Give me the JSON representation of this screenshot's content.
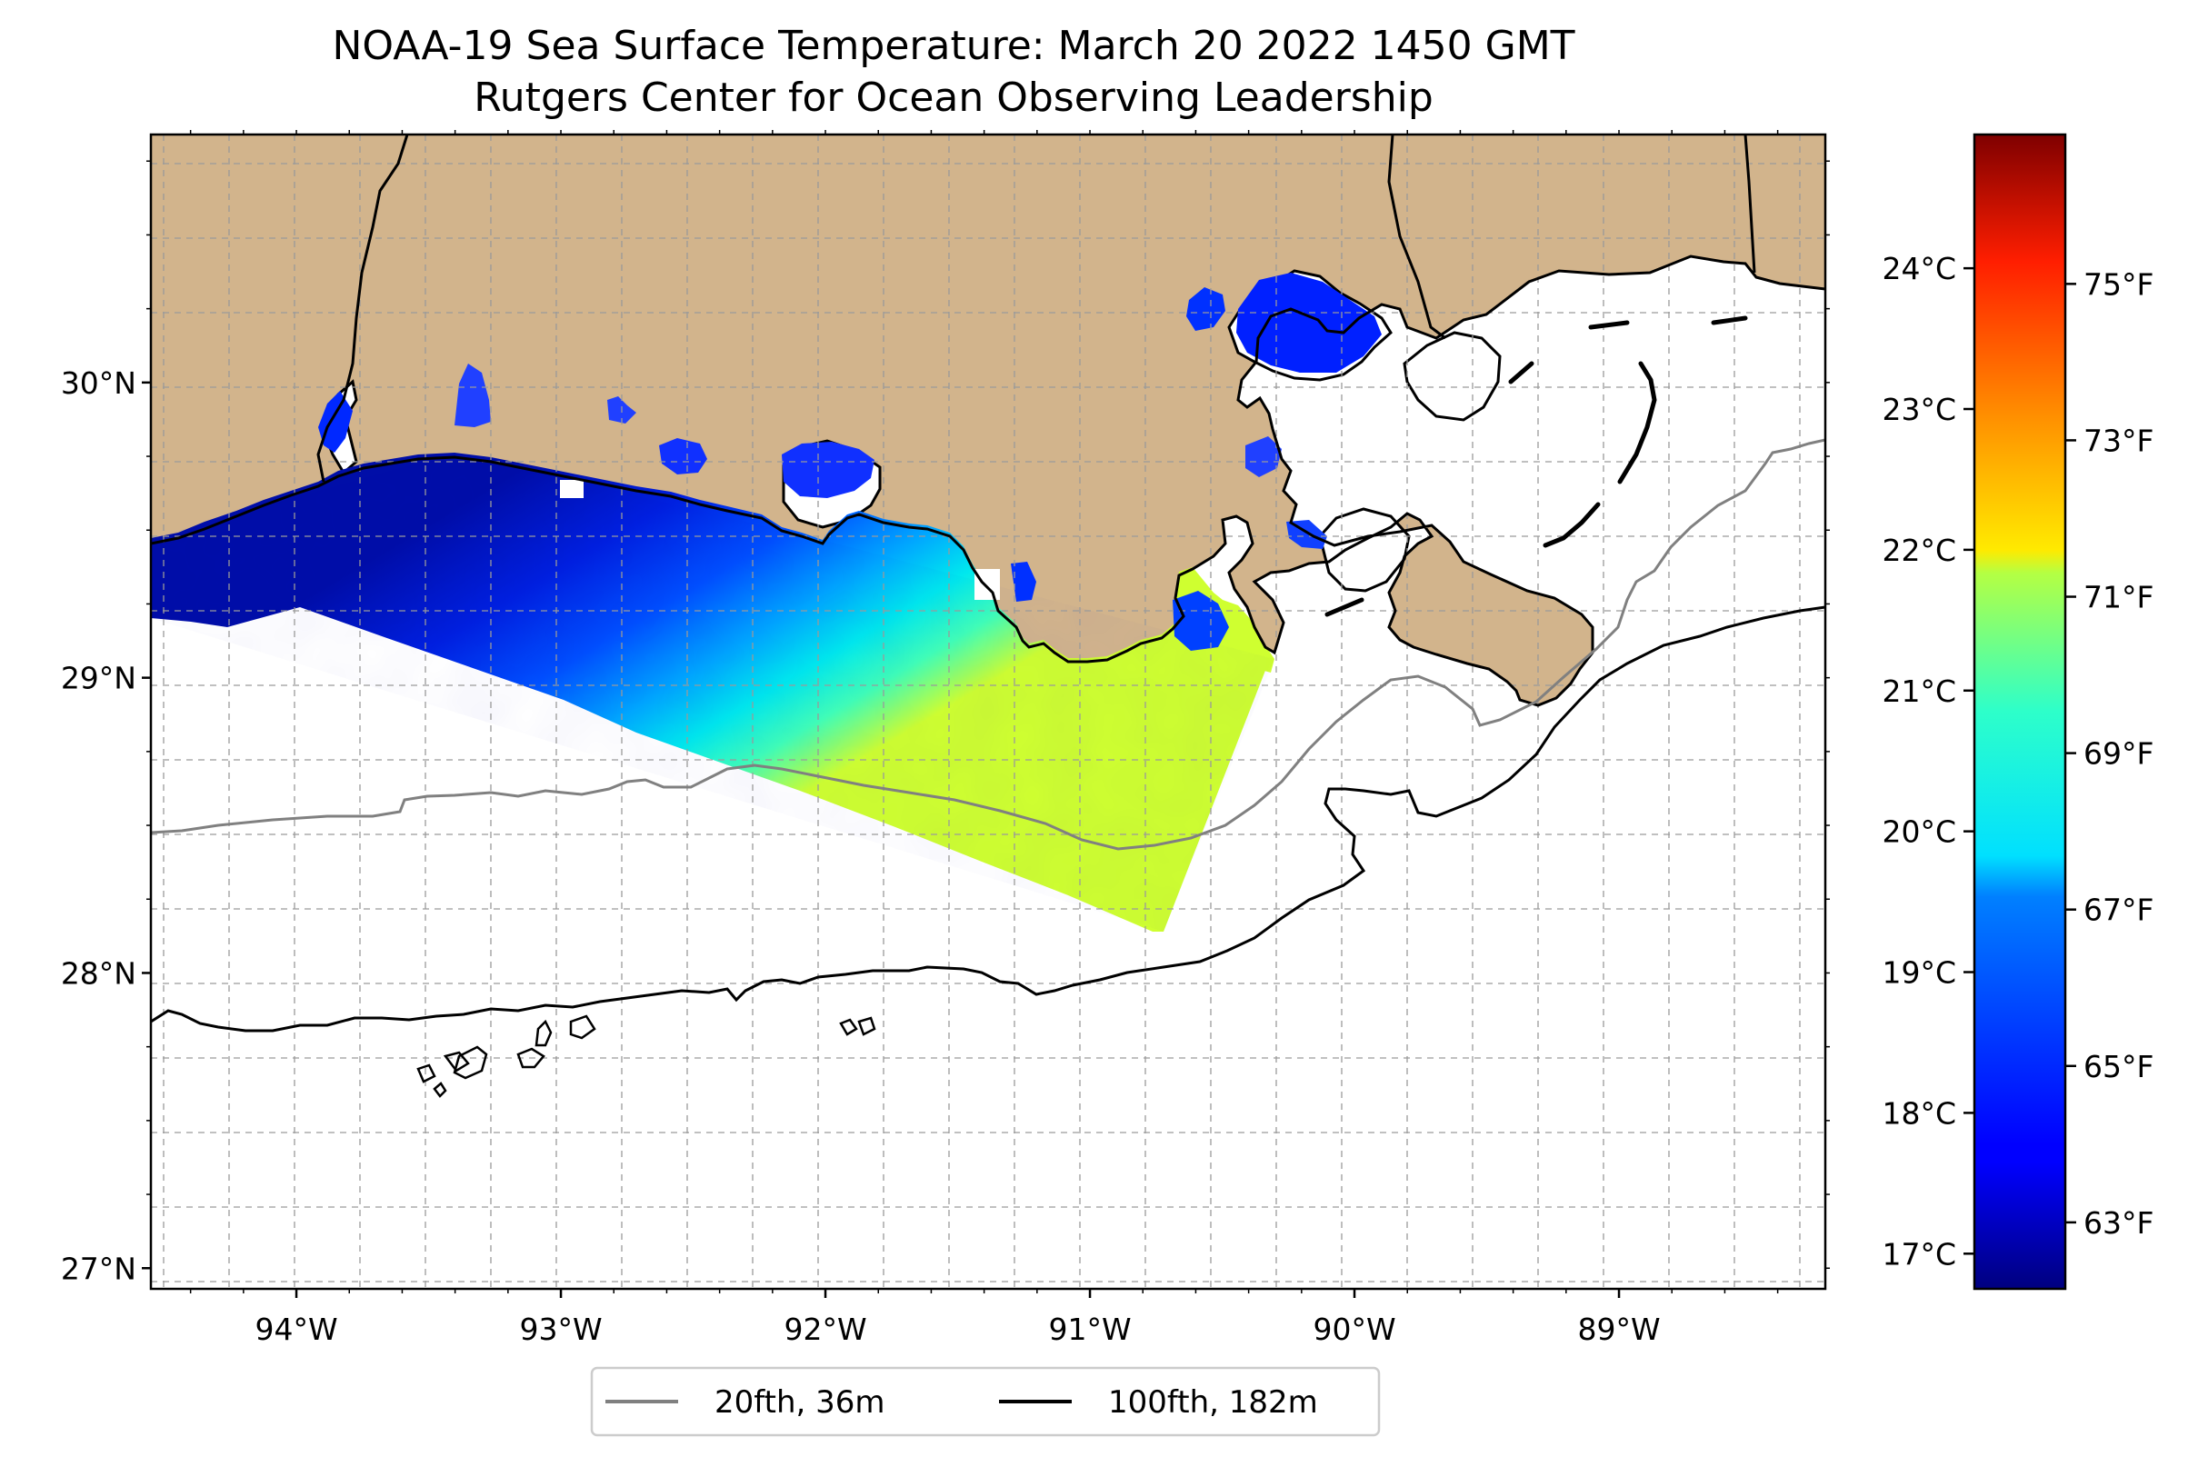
{
  "title": "NOAA-19 Sea Surface Temperature: March 20 2022 1450 GMT",
  "subtitle": "Rutgers Center for Ocean Observing Leadership",
  "map": {
    "lon_range": [
      -94.55,
      -88.22
    ],
    "lat_range": [
      26.93,
      30.84
    ],
    "lon_ticks": [
      {
        "value": -94,
        "label": "94°W"
      },
      {
        "value": -93,
        "label": "93°W"
      },
      {
        "value": -92,
        "label": "92°W"
      },
      {
        "value": -91,
        "label": "91°W"
      },
      {
        "value": -90,
        "label": "90°W"
      },
      {
        "value": -89,
        "label": "89°W"
      }
    ],
    "lat_ticks": [
      {
        "value": 27,
        "label": "27°N"
      },
      {
        "value": 28,
        "label": "28°N"
      },
      {
        "value": 29,
        "label": "29°N"
      },
      {
        "value": 30,
        "label": "30°N"
      }
    ],
    "grid": true,
    "land_color": "#d2b48c",
    "coastline_color": "#000000",
    "isobath_20fth_color": "#808080",
    "isobath_100fth_color": "#000000"
  },
  "colorbar": {
    "colormap": "jet",
    "range_c": [
      16.75,
      24.95
    ],
    "celsius_ticks": [
      {
        "value": 17,
        "label": "17°C"
      },
      {
        "value": 18,
        "label": "18°C"
      },
      {
        "value": 19,
        "label": "19°C"
      },
      {
        "value": 20,
        "label": "20°C"
      },
      {
        "value": 21,
        "label": "21°C"
      },
      {
        "value": 22,
        "label": "22°C"
      },
      {
        "value": 23,
        "label": "23°C"
      },
      {
        "value": 24,
        "label": "24°C"
      }
    ],
    "fahrenheit_ticks": [
      {
        "value": 63,
        "label": "63°F"
      },
      {
        "value": 65,
        "label": "65°F"
      },
      {
        "value": 67,
        "label": "67°F"
      },
      {
        "value": 69,
        "label": "69°F"
      },
      {
        "value": 71,
        "label": "71°F"
      },
      {
        "value": 73,
        "label": "73°F"
      },
      {
        "value": 75,
        "label": "75°F"
      }
    ]
  },
  "legend": {
    "items": [
      {
        "label": "20fth, 36m",
        "color": "#808080"
      },
      {
        "label": "100fth, 182m",
        "color": "#000000"
      }
    ],
    "placement": "bottom-center"
  }
}
